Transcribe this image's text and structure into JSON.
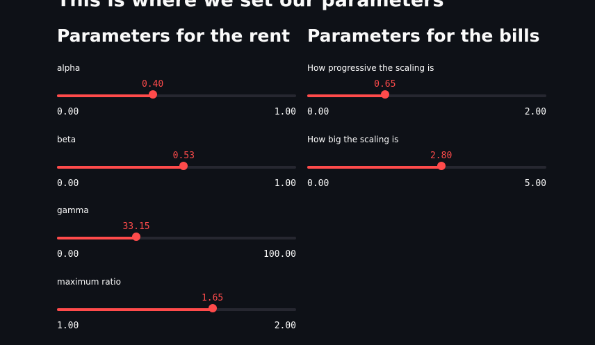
{
  "page_title": "This is where we set our parameters",
  "colors": {
    "background": "#0e1117",
    "accent": "#ff4b4b",
    "track": "#262730",
    "text": "#fafafa"
  },
  "rent": {
    "title": "Parameters for the rent",
    "sliders": [
      {
        "label": "alpha",
        "value": "0.40",
        "min": "0.00",
        "max": "1.00",
        "fraction": 0.4
      },
      {
        "label": "beta",
        "value": "0.53",
        "min": "0.00",
        "max": "1.00",
        "fraction": 0.53
      },
      {
        "label": "gamma",
        "value": "33.15",
        "min": "0.00",
        "max": "100.00",
        "fraction": 0.3315
      },
      {
        "label": "maximum ratio",
        "value": "1.65",
        "min": "1.00",
        "max": "2.00",
        "fraction": 0.65
      }
    ]
  },
  "bills": {
    "title": "Parameters for the bills",
    "sliders": [
      {
        "label": "How progressive the scaling is",
        "value": "0.65",
        "min": "0.00",
        "max": "2.00",
        "fraction": 0.325
      },
      {
        "label": "How big the scaling is",
        "value": "2.80",
        "min": "0.00",
        "max": "5.00",
        "fraction": 0.56
      }
    ]
  }
}
